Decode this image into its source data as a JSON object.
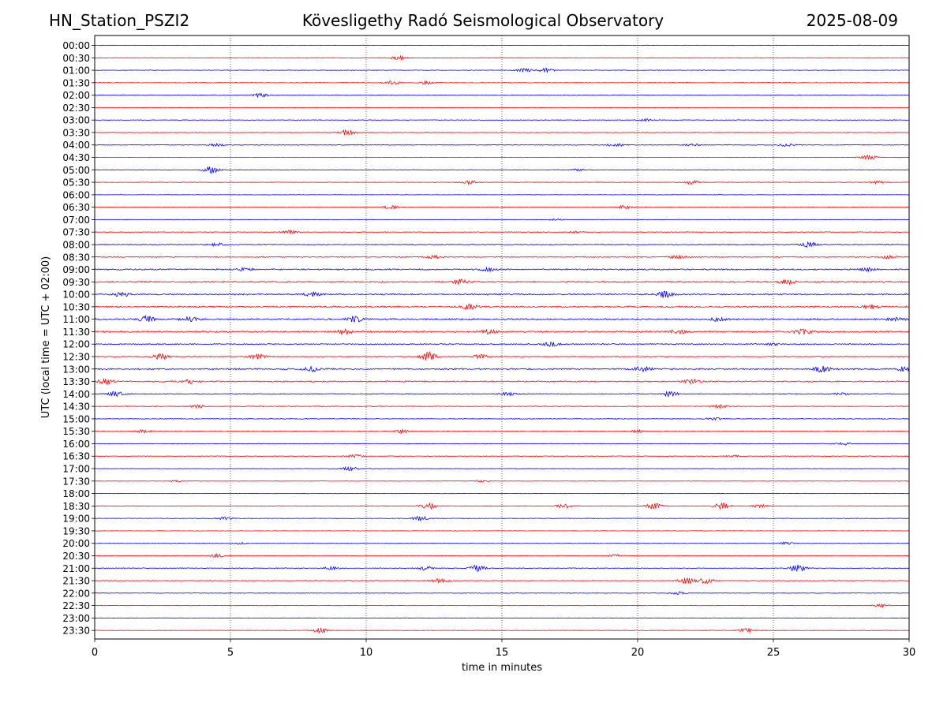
{
  "header": {
    "station": "HN_Station_PSZI2",
    "title": "Kövesligethy Radó Seismological Observatory",
    "date": "2025-08-09"
  },
  "chart_data": {
    "type": "line",
    "title": "Kövesligethy Radó Seismological Observatory",
    "xlabel": "time in minutes",
    "ylabel": "UTC (local time = UTC + 02:00)",
    "xlim": [
      0,
      30
    ],
    "x_ticks": [
      "0",
      "5",
      "10",
      "15",
      "20",
      "25",
      "30"
    ],
    "grid": "vertical dotted at 5-minute ticks",
    "colors": {
      "even_rows": "#0000ff",
      "odd_rows": "#ff0000"
    },
    "rows": [
      {
        "label": "00:00",
        "amplitude": 0.6,
        "events": []
      },
      {
        "label": "00:30",
        "amplitude": 0.7,
        "events": [
          {
            "t": 11.2,
            "amp": 2.2
          }
        ]
      },
      {
        "label": "01:00",
        "amplitude": 0.8,
        "events": [
          {
            "t": 15.8,
            "amp": 2.0
          },
          {
            "t": 16.6,
            "amp": 2.4
          }
        ]
      },
      {
        "label": "01:30",
        "amplitude": 0.8,
        "events": [
          {
            "t": 11.0,
            "amp": 2.0
          },
          {
            "t": 12.2,
            "amp": 1.6
          }
        ]
      },
      {
        "label": "02:00",
        "amplitude": 0.9,
        "events": [
          {
            "t": 6.1,
            "amp": 2.2
          }
        ]
      },
      {
        "label": "02:30",
        "amplitude": 0.6,
        "events": []
      },
      {
        "label": "03:00",
        "amplitude": 0.7,
        "events": [
          {
            "t": 20.3,
            "amp": 1.2
          }
        ]
      },
      {
        "label": "03:30",
        "amplitude": 0.8,
        "events": [
          {
            "t": 9.3,
            "amp": 3.0
          }
        ]
      },
      {
        "label": "04:00",
        "amplitude": 0.9,
        "events": [
          {
            "t": 4.5,
            "amp": 1.5
          },
          {
            "t": 19.2,
            "amp": 1.8
          },
          {
            "t": 22.0,
            "amp": 1.2
          },
          {
            "t": 25.5,
            "amp": 1.5
          }
        ]
      },
      {
        "label": "04:30",
        "amplitude": 0.6,
        "events": [
          {
            "t": 28.5,
            "amp": 2.8
          }
        ]
      },
      {
        "label": "05:00",
        "amplitude": 0.7,
        "events": [
          {
            "t": 4.3,
            "amp": 4.0
          },
          {
            "t": 17.8,
            "amp": 1.0
          }
        ]
      },
      {
        "label": "05:30",
        "amplitude": 0.7,
        "events": [
          {
            "t": 13.8,
            "amp": 2.2
          },
          {
            "t": 22.0,
            "amp": 2.6
          },
          {
            "t": 28.8,
            "amp": 1.6
          }
        ]
      },
      {
        "label": "06:00",
        "amplitude": 0.6,
        "events": []
      },
      {
        "label": "06:30",
        "amplitude": 0.8,
        "events": [
          {
            "t": 10.9,
            "amp": 2.0
          },
          {
            "t": 19.5,
            "amp": 1.8
          }
        ]
      },
      {
        "label": "07:00",
        "amplitude": 0.7,
        "events": [
          {
            "t": 17.0,
            "amp": 1.0
          }
        ]
      },
      {
        "label": "07:30",
        "amplitude": 0.8,
        "events": [
          {
            "t": 7.2,
            "amp": 2.0
          },
          {
            "t": 17.7,
            "amp": 1.0
          }
        ]
      },
      {
        "label": "08:00",
        "amplitude": 1.2,
        "events": [
          {
            "t": 4.5,
            "amp": 1.6
          },
          {
            "t": 26.3,
            "amp": 3.0
          }
        ]
      },
      {
        "label": "08:30",
        "amplitude": 1.4,
        "events": [
          {
            "t": 12.5,
            "amp": 1.6
          },
          {
            "t": 21.5,
            "amp": 1.8
          },
          {
            "t": 29.2,
            "amp": 1.8
          }
        ]
      },
      {
        "label": "09:00",
        "amplitude": 1.7,
        "events": [
          {
            "t": 5.5,
            "amp": 2.0
          },
          {
            "t": 14.5,
            "amp": 1.8
          },
          {
            "t": 28.5,
            "amp": 1.6
          }
        ]
      },
      {
        "label": "09:30",
        "amplitude": 1.8,
        "events": [
          {
            "t": 13.5,
            "amp": 3.0
          },
          {
            "t": 25.5,
            "amp": 2.2
          }
        ]
      },
      {
        "label": "10:00",
        "amplitude": 1.8,
        "events": [
          {
            "t": 1.0,
            "amp": 2.4
          },
          {
            "t": 8.0,
            "amp": 2.2
          },
          {
            "t": 21.0,
            "amp": 4.0
          }
        ]
      },
      {
        "label": "10:30",
        "amplitude": 1.8,
        "events": [
          {
            "t": 13.8,
            "amp": 3.2
          },
          {
            "t": 28.6,
            "amp": 2.4
          }
        ]
      },
      {
        "label": "11:00",
        "amplitude": 2.0,
        "events": [
          {
            "t": 1.9,
            "amp": 3.4
          },
          {
            "t": 3.5,
            "amp": 2.8
          },
          {
            "t": 9.6,
            "amp": 3.6
          },
          {
            "t": 23.0,
            "amp": 2.4
          },
          {
            "t": 29.5,
            "amp": 2.0
          }
        ]
      },
      {
        "label": "11:30",
        "amplitude": 2.0,
        "events": [
          {
            "t": 9.2,
            "amp": 3.2
          },
          {
            "t": 14.5,
            "amp": 2.4
          },
          {
            "t": 21.5,
            "amp": 2.4
          },
          {
            "t": 26.1,
            "amp": 2.8
          }
        ]
      },
      {
        "label": "12:00",
        "amplitude": 1.4,
        "events": [
          {
            "t": 16.8,
            "amp": 2.6
          },
          {
            "t": 25.0,
            "amp": 1.2
          }
        ]
      },
      {
        "label": "12:30",
        "amplitude": 1.2,
        "events": [
          {
            "t": 2.4,
            "amp": 3.4
          },
          {
            "t": 6.0,
            "amp": 3.0
          },
          {
            "t": 12.3,
            "amp": 5.0
          },
          {
            "t": 14.2,
            "amp": 2.4
          }
        ]
      },
      {
        "label": "13:00",
        "amplitude": 1.8,
        "events": [
          {
            "t": 8.0,
            "amp": 2.6
          },
          {
            "t": 20.2,
            "amp": 3.4
          },
          {
            "t": 26.8,
            "amp": 3.6
          },
          {
            "t": 29.8,
            "amp": 2.6
          }
        ]
      },
      {
        "label": "13:30",
        "amplitude": 1.6,
        "events": [
          {
            "t": 0.4,
            "amp": 3.0
          },
          {
            "t": 3.5,
            "amp": 2.4
          },
          {
            "t": 22.0,
            "amp": 2.6
          }
        ]
      },
      {
        "label": "14:00",
        "amplitude": 1.2,
        "events": [
          {
            "t": 0.8,
            "amp": 2.6
          },
          {
            "t": 15.2,
            "amp": 1.6
          },
          {
            "t": 21.2,
            "amp": 3.2
          },
          {
            "t": 27.5,
            "amp": 1.4
          }
        ]
      },
      {
        "label": "14:30",
        "amplitude": 1.0,
        "events": [
          {
            "t": 3.8,
            "amp": 1.6
          },
          {
            "t": 23.0,
            "amp": 1.8
          }
        ]
      },
      {
        "label": "15:00",
        "amplitude": 0.9,
        "events": [
          {
            "t": 22.8,
            "amp": 1.6
          }
        ]
      },
      {
        "label": "15:30",
        "amplitude": 0.9,
        "events": [
          {
            "t": 1.8,
            "amp": 1.8
          },
          {
            "t": 11.3,
            "amp": 2.0
          },
          {
            "t": 20.0,
            "amp": 1.4
          }
        ]
      },
      {
        "label": "16:00",
        "amplitude": 0.8,
        "events": [
          {
            "t": 27.6,
            "amp": 1.6
          }
        ]
      },
      {
        "label": "16:30",
        "amplitude": 0.8,
        "events": [
          {
            "t": 9.6,
            "amp": 1.8
          },
          {
            "t": 23.5,
            "amp": 1.2
          }
        ]
      },
      {
        "label": "17:00",
        "amplitude": 0.7,
        "events": [
          {
            "t": 9.4,
            "amp": 2.4
          }
        ]
      },
      {
        "label": "17:30",
        "amplitude": 0.6,
        "events": [
          {
            "t": 3.0,
            "amp": 1.0
          },
          {
            "t": 14.2,
            "amp": 1.0
          }
        ]
      },
      {
        "label": "18:00",
        "amplitude": 0.6,
        "events": []
      },
      {
        "label": "18:30",
        "amplitude": 0.8,
        "events": [
          {
            "t": 12.3,
            "amp": 3.6
          },
          {
            "t": 17.3,
            "amp": 2.4
          },
          {
            "t": 20.6,
            "amp": 3.4
          },
          {
            "t": 23.1,
            "amp": 3.4
          },
          {
            "t": 24.5,
            "amp": 1.8
          }
        ]
      },
      {
        "label": "19:00",
        "amplitude": 0.8,
        "events": [
          {
            "t": 4.8,
            "amp": 1.6
          },
          {
            "t": 12.0,
            "amp": 2.8
          }
        ]
      },
      {
        "label": "19:30",
        "amplitude": 0.6,
        "events": []
      },
      {
        "label": "20:00",
        "amplitude": 0.7,
        "events": [
          {
            "t": 5.3,
            "amp": 1.2
          },
          {
            "t": 25.5,
            "amp": 1.4
          }
        ]
      },
      {
        "label": "20:30",
        "amplitude": 0.8,
        "events": [
          {
            "t": 4.5,
            "amp": 2.0
          },
          {
            "t": 19.2,
            "amp": 1.4
          }
        ]
      },
      {
        "label": "21:00",
        "amplitude": 0.9,
        "events": [
          {
            "t": 8.7,
            "amp": 1.6
          },
          {
            "t": 12.2,
            "amp": 2.6
          },
          {
            "t": 14.1,
            "amp": 3.6
          },
          {
            "t": 25.9,
            "amp": 4.2
          }
        ]
      },
      {
        "label": "21:30",
        "amplitude": 0.9,
        "events": [
          {
            "t": 12.7,
            "amp": 2.4
          },
          {
            "t": 21.8,
            "amp": 3.4
          },
          {
            "t": 22.5,
            "amp": 3.0
          }
        ]
      },
      {
        "label": "22:00",
        "amplitude": 0.7,
        "events": [
          {
            "t": 21.5,
            "amp": 1.6
          }
        ]
      },
      {
        "label": "22:30",
        "amplitude": 0.6,
        "events": [
          {
            "t": 29.0,
            "amp": 1.8
          }
        ]
      },
      {
        "label": "23:00",
        "amplitude": 0.6,
        "events": []
      },
      {
        "label": "23:30",
        "amplitude": 0.7,
        "events": [
          {
            "t": 8.3,
            "amp": 2.8
          },
          {
            "t": 24.0,
            "amp": 2.4
          }
        ]
      }
    ]
  }
}
